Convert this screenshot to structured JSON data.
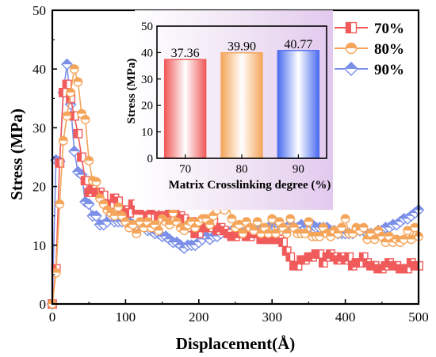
{
  "chart_data": [
    {
      "type": "line",
      "xlabel": "Displacement(Å)",
      "ylabel": "Stress (MPa)",
      "xlim": [
        0,
        500
      ],
      "ylim": [
        0,
        50
      ],
      "xticks": [
        "0",
        "100",
        "200",
        "300",
        "400",
        "500"
      ],
      "yticks": [
        "0",
        "10",
        "20",
        "30",
        "40",
        "50"
      ],
      "legend_position": "top-right",
      "series": [
        {
          "name": "70%",
          "color": "#f05a5a",
          "marker": "half-square",
          "x": [
            0,
            5,
            10,
            15,
            20,
            25,
            30,
            35,
            40,
            45,
            50,
            55,
            60,
            65,
            70,
            75,
            80,
            85,
            90,
            95,
            100,
            105,
            110,
            115,
            120,
            125,
            130,
            135,
            140,
            145,
            150,
            155,
            160,
            165,
            170,
            175,
            180,
            185,
            190,
            195,
            200,
            205,
            210,
            215,
            220,
            225,
            230,
            235,
            240,
            245,
            250,
            255,
            260,
            265,
            270,
            275,
            280,
            285,
            290,
            295,
            300,
            305,
            310,
            315,
            320,
            325,
            330,
            335,
            340,
            345,
            350,
            355,
            360,
            365,
            370,
            375,
            380,
            385,
            390,
            395,
            400,
            405,
            410,
            415,
            420,
            425,
            430,
            435,
            440,
            445,
            450,
            455,
            460,
            465,
            470,
            475,
            480,
            485,
            490,
            495,
            500
          ],
          "y": [
            0,
            6,
            24,
            36,
            37.4,
            35,
            32,
            29,
            25,
            21,
            19,
            19.5,
            19,
            19,
            18.5,
            17,
            17,
            18,
            17.5,
            16,
            16,
            15.5,
            17,
            16,
            16,
            16,
            15,
            16,
            16,
            15,
            15,
            15,
            15.5,
            16,
            17,
            15,
            14.5,
            13,
            14,
            12,
            12,
            13,
            13,
            13,
            14,
            12.5,
            13,
            12.5,
            12,
            11.5,
            11.5,
            12,
            12,
            11.5,
            11.5,
            12,
            12,
            11,
            11,
            11,
            11,
            11,
            11,
            10.5,
            9,
            8,
            6.5,
            6.5,
            7.5,
            7.5,
            8,
            8,
            8.5,
            8.5,
            7,
            8,
            8.5,
            8,
            7.5,
            8,
            7.5,
            8,
            6.5,
            7,
            7,
            8,
            7,
            6.5,
            6.5,
            6,
            6,
            6.5,
            7,
            6.5,
            6.5,
            6,
            6,
            6,
            7,
            6.5,
            6.5
          ]
        },
        {
          "name": "80%",
          "color": "#f5a55a",
          "marker": "half-circle",
          "x": [
            0,
            5,
            10,
            15,
            20,
            25,
            30,
            35,
            40,
            45,
            50,
            55,
            60,
            65,
            70,
            75,
            80,
            85,
            90,
            95,
            100,
            105,
            110,
            115,
            120,
            125,
            130,
            135,
            140,
            145,
            150,
            155,
            160,
            165,
            170,
            175,
            180,
            185,
            190,
            195,
            200,
            205,
            210,
            215,
            220,
            225,
            230,
            235,
            240,
            245,
            250,
            255,
            260,
            265,
            270,
            275,
            280,
            285,
            290,
            295,
            300,
            305,
            310,
            315,
            320,
            325,
            330,
            335,
            340,
            345,
            350,
            355,
            360,
            365,
            370,
            375,
            380,
            385,
            390,
            395,
            400,
            405,
            410,
            415,
            420,
            425,
            430,
            435,
            440,
            445,
            450,
            455,
            460,
            465,
            470,
            475,
            480,
            485,
            490,
            495,
            500
          ],
          "y": [
            0,
            5.3,
            17,
            27.8,
            32,
            36,
            40,
            37.8,
            32.4,
            31.4,
            24.4,
            21,
            20.8,
            18,
            17,
            16,
            15.5,
            15,
            16.5,
            15,
            14,
            13,
            13.5,
            12,
            14,
            13,
            14,
            13,
            13.5,
            12.5,
            14.5,
            14,
            13.5,
            15.5,
            14,
            13,
            12.5,
            13.5,
            14,
            13,
            14,
            14.5,
            14.5,
            13.5,
            15,
            16,
            17,
            16,
            17,
            14.5,
            13,
            13.5,
            12,
            14,
            13,
            12.5,
            14,
            12,
            13,
            12,
            14.5,
            12,
            14,
            13,
            12,
            14.5,
            13,
            12,
            12,
            12,
            14,
            11.5,
            11.5,
            11.5,
            13,
            12,
            11.5,
            12.5,
            12,
            13,
            14.5,
            12,
            12,
            13,
            12.5,
            13,
            11,
            12,
            11,
            12.5,
            11.5,
            10.5,
            11.5,
            10.5,
            11,
            10.5,
            11,
            12.5,
            11,
            13,
            11.5
          ]
        },
        {
          "name": "90%",
          "color": "#7b8fe8",
          "marker": "half-diamond",
          "x": [
            0,
            5,
            10,
            15,
            20,
            25,
            30,
            35,
            40,
            45,
            50,
            55,
            60,
            65,
            70,
            75,
            80,
            85,
            90,
            95,
            100,
            105,
            110,
            115,
            120,
            125,
            130,
            135,
            140,
            145,
            150,
            155,
            160,
            165,
            170,
            175,
            180,
            185,
            190,
            195,
            200,
            205,
            210,
            215,
            220,
            225,
            230,
            235,
            240,
            245,
            250,
            255,
            260,
            265,
            270,
            275,
            280,
            285,
            290,
            295,
            300,
            305,
            310,
            315,
            320,
            325,
            330,
            335,
            340,
            345,
            350,
            355,
            360,
            365,
            370,
            375,
            380,
            385,
            390,
            395,
            400,
            405,
            410,
            415,
            420,
            425,
            430,
            435,
            440,
            445,
            450,
            455,
            460,
            465,
            470,
            475,
            480,
            485,
            490,
            495,
            500
          ],
          "y": [
            0,
            24.5,
            24.3,
            36,
            40.8,
            34,
            26,
            22.5,
            22,
            17.4,
            17,
            15,
            15,
            13.5,
            13.5,
            14,
            15,
            14,
            14,
            14,
            14,
            14,
            13.5,
            13,
            13.5,
            13.5,
            12.5,
            12.5,
            12,
            12,
            11.5,
            11.5,
            11,
            10.5,
            10.5,
            10,
            9.5,
            10,
            10,
            10,
            10.5,
            11,
            11.5,
            11,
            11.5,
            11.5,
            12,
            12.5,
            12,
            12.5,
            12,
            12.5,
            12,
            12.5,
            12.5,
            12.5,
            13,
            12.5,
            12.5,
            13,
            13,
            13,
            13.5,
            13,
            13,
            13.5,
            13,
            13,
            13.5,
            13,
            13,
            13.5,
            13,
            13,
            13,
            13,
            12.5,
            12.5,
            12,
            12,
            12,
            12,
            12,
            12.5,
            12.5,
            12.5,
            12,
            12,
            12,
            12.5,
            12.5,
            13,
            13,
            13.5,
            13.5,
            14,
            14.5,
            14.5,
            15,
            15.5,
            16
          ]
        }
      ]
    },
    {
      "type": "bar",
      "xlabel": "Matrix Crosslinking degree (%)",
      "ylabel": "Stress (MPa)",
      "ylim": [
        0,
        50
      ],
      "yticks": [
        "0",
        "10",
        "20",
        "30",
        "40",
        "50"
      ],
      "categories": [
        "70",
        "80",
        "90"
      ],
      "values": [
        37.36,
        39.9,
        40.77
      ],
      "value_labels": [
        "37.36",
        "39.90",
        "40.77"
      ],
      "colors": [
        "#f05a5a",
        "#f5a55a",
        "#4a6cf0"
      ]
    }
  ]
}
